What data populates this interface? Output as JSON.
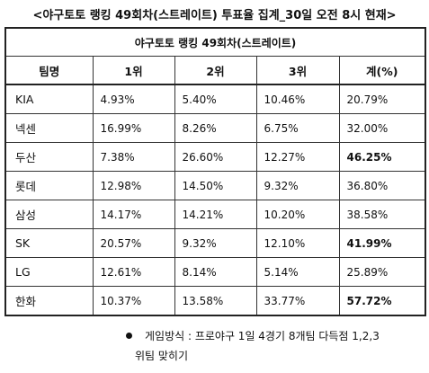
{
  "title": "<야구토토 랭킹 49회차(스트레이트) 투표율 집계_30일 오전 8시 현재>",
  "table": {
    "caption": "야구토토 랭킹 49회차(스트레이트)",
    "headers": [
      "팀명",
      "1위",
      "2위",
      "3위",
      "계(%)"
    ],
    "rows": [
      {
        "team": "KIA",
        "r1": "4.93%",
        "r2": "5.40%",
        "r3": "10.46%",
        "total": "20.79%",
        "total_bold": false
      },
      {
        "team": "넥센",
        "r1": "16.99%",
        "r2": "8.26%",
        "r3": "6.75%",
        "total": "32.00%",
        "total_bold": false
      },
      {
        "team": "두산",
        "r1": "7.38%",
        "r2": "26.60%",
        "r3": "12.27%",
        "total": "46.25%",
        "total_bold": true
      },
      {
        "team": "롯데",
        "r1": "12.98%",
        "r2": "14.50%",
        "r3": "9.32%",
        "total": "36.80%",
        "total_bold": false
      },
      {
        "team": "삼성",
        "r1": "14.17%",
        "r2": "14.21%",
        "r3": "10.20%",
        "total": "38.58%",
        "total_bold": false
      },
      {
        "team": "SK",
        "r1": "20.57%",
        "r2": "9.32%",
        "r3": "12.10%",
        "total": "41.99%",
        "total_bold": true
      },
      {
        "team": "LG",
        "r1": "12.61%",
        "r2": "8.14%",
        "r3": "5.14%",
        "total": "25.89%",
        "total_bold": false
      },
      {
        "team": "한화",
        "r1": "10.37%",
        "r2": "13.58%",
        "r3": "33.77%",
        "total": "57.72%",
        "total_bold": true
      }
    ]
  },
  "note": {
    "line1": "게임방식 : 프로야구 1일 4경기 8개팀 다득점 1,2,3",
    "line2": "위팀 맞히기"
  }
}
